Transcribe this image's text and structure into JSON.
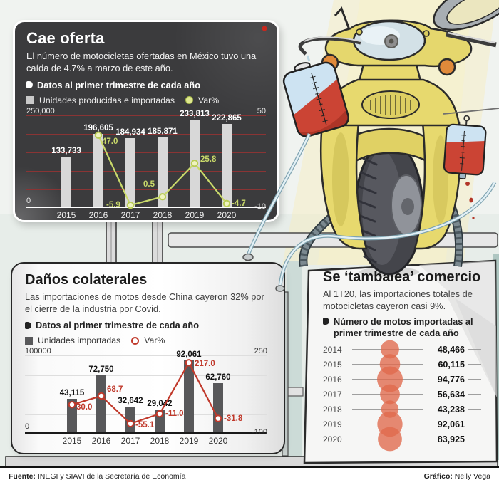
{
  "supply": {
    "title": "Cae oferta",
    "description": "El número de motocicletas ofertadas en México tuvo una caída de 4.7% a marzo de este año.",
    "note": "Datos al primer trimestre de cada año",
    "legend_bars": "Unidades producidas e importadas",
    "legend_line": "Var%"
  },
  "imports": {
    "title": "Daños colaterales",
    "description": "Las importaciones de motos desde China cayeron 32% por el cierre de la industria por Covid.",
    "note": "Datos al primer trimestre de cada año",
    "legend_bars": "Unidades importadas",
    "legend_line": "Var%"
  },
  "trade": {
    "title": "Se ‘tambalea’ comercio",
    "description": "Al 1T20, las importaciones totales de motocicletas cayeron casi 9%.",
    "note": "Número de motos importadas al primer trimestre de cada año"
  },
  "footer": {
    "source_label": "Fuente:",
    "source_text": " INEGI y SIAVI de la Secretaría de Economía",
    "credit_label": "Gráfico:",
    "credit_text": " Nelly Vega"
  },
  "colors": {
    "panel_dark": "#3b3b3d",
    "grid_red": "#8a3434",
    "bar_light": "#d8d8d8",
    "bar_dark": "#58585a",
    "line_green": "#c9d96a",
    "marker_green_fill": "#eff3c0",
    "line_red": "#c0392b",
    "bubble": "#e0694c",
    "indicator_orange": "#e08a3a",
    "scooter_yellow": "#e7d96e",
    "blood_red": "#cb4434"
  },
  "chart_data": [
    {
      "type": "bar+line",
      "title": "Cae oferta",
      "categories": [
        "2015",
        "2016",
        "2017",
        "2018",
        "2019",
        "2020"
      ],
      "series": [
        {
          "name": "Unidades producidas e importadas",
          "type": "bar",
          "values": [
            133733,
            196605,
            184934,
            185871,
            233813,
            222865
          ],
          "labels": [
            "133,733",
            "196,605",
            "184,934",
            "185,871",
            "233,813",
            "222,865"
          ]
        },
        {
          "name": "Var%",
          "type": "line",
          "values": [
            null,
            47.0,
            -5.9,
            0.5,
            25.8,
            -4.7
          ],
          "labels": [
            null,
            "47.0",
            "-5.9",
            "0.5",
            "25.8",
            "-4.7"
          ]
        }
      ],
      "left_axis": {
        "min": 0,
        "max": 250000,
        "max_label": "250,000",
        "min_label": "0"
      },
      "right_axis": {
        "min": -10,
        "max": 50,
        "max_label": "50",
        "min_label": "-10"
      },
      "gridlines": [
        250000,
        200000,
        150000,
        100000,
        50000
      ]
    },
    {
      "type": "bar+line",
      "title": "Daños colaterales",
      "categories": [
        "2015",
        "2016",
        "2017",
        "2018",
        "2019",
        "2020"
      ],
      "series": [
        {
          "name": "Unidades importadas",
          "type": "bar",
          "values": [
            43115,
            72750,
            32642,
            29042,
            92061,
            62760
          ],
          "labels": [
            "43,115",
            "72,750",
            "32,642",
            "29,042",
            "92,061",
            "62,760"
          ]
        },
        {
          "name": "Var%",
          "type": "line",
          "values": [
            30.0,
            68.7,
            -55.1,
            -11.0,
            217.0,
            -31.8
          ],
          "labels": [
            "30.0",
            "68.7",
            "-55.1",
            "-11.0",
            "217.0",
            "-31.8"
          ]
        }
      ],
      "left_axis": {
        "min": 0,
        "max": 100000,
        "max_label": "100000",
        "min_label": "0"
      },
      "right_axis": {
        "min": -100,
        "max": 250,
        "max_label": "250",
        "min_label": "-100"
      },
      "gridlines": [
        100000,
        75000,
        50000,
        25000
      ]
    },
    {
      "type": "bubble-list",
      "title": "Se ‘tambalea’ comercio",
      "years": [
        "2014",
        "2015",
        "2016",
        "2017",
        "2018",
        "2019",
        "2020"
      ],
      "values": [
        48466,
        60115,
        94776,
        56634,
        43238,
        92061,
        83925
      ],
      "labels": [
        "48,466",
        "60,115",
        "94,776",
        "56,634",
        "43,238",
        "92,061",
        "83,925"
      ]
    }
  ]
}
